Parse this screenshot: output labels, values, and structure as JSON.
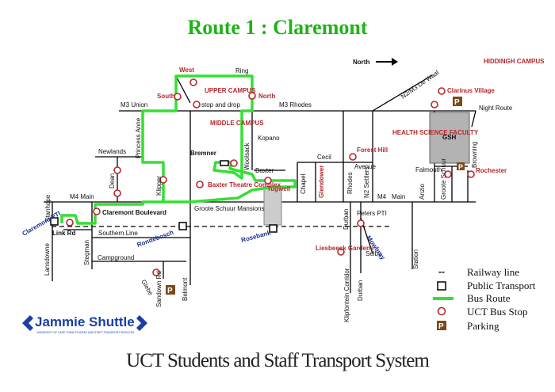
{
  "title": "Route 1 : Claremont",
  "title_color": "#1fb316",
  "footer": "UCT Students and Staff Transport System",
  "north_label": "North",
  "logo": {
    "text": "Jammie Shuttle",
    "subtitle": "UNIVERSITY OF CAPE TOWN STUDENT AND STAFF TRANSPORT SERVICES"
  },
  "colors": {
    "route": "#33e033",
    "stop": "#b5272d",
    "road": "#000000",
    "red_text": "#b5272d",
    "blue_text": "#1b2f8f",
    "parking": "#7a4a1c"
  },
  "legend": [
    {
      "symbol": "--",
      "label": "Railway line"
    },
    {
      "symbol": "square",
      "label": "Public Transport"
    },
    {
      "symbol": "green-line",
      "label": "Bus Route"
    },
    {
      "symbol": "circle",
      "label": "UCT Bus Stop"
    },
    {
      "symbol": "P",
      "label": "Parking"
    }
  ],
  "roads": {
    "m3_union": "M3 Union",
    "m3_rhodes": "M3 Rhodes",
    "ring": "Ring",
    "kopano": "Kopano",
    "princess_anne": "Princess Anne",
    "newlands": "Newlands",
    "dean": "Dean",
    "klipper": "Klipper",
    "m4_main_left": "M4 Main",
    "m4": "M4",
    "main": "Main",
    "stanhope": "Stanhope",
    "claremont_boulevard": "Claremont Boulevard",
    "groote_schuur_mansions": "Groote Schuur Mansions",
    "southern_line": "Southern Line",
    "campground": "Campground",
    "stegman": "Stegman",
    "lansdowne": "Lansdowne",
    "link_rd": "Link Rd",
    "belmont": "Belmont",
    "sandown_rd": "Sandown Rd",
    "woolsack": "Woolsack",
    "bremner": "Bremner",
    "baxter": "Baxter",
    "chapel": "Chapel",
    "cecil": "Cecil",
    "rhodes": "Rhodes",
    "avenue": "Avenue",
    "n2_settlers": "N2 Settlers",
    "durban1": "Durban",
    "durban2": "Durban",
    "klipfontein_corridor": "Klipfontein Corridor",
    "selby": "Selby",
    "anzio": "Anzio",
    "groote_schuur": "Groote Schuur",
    "browning": "Browning",
    "station": "Station",
    "falmouth": "Falmouth",
    "night_route": "Night Route",
    "n2_m3_de_waal": "N2/M3  De Waal",
    "gsh": "GSH"
  },
  "places": {
    "west": "West",
    "south": "South",
    "north": "North",
    "upper_campus": "UPPER CAMPUS",
    "drop": "stop and drop",
    "middle_campus": "MIDDLE CAMPUS",
    "baxter_theatre": "Baxter Theatre Complex",
    "tugwell": "Tugwell",
    "glendower": "Glendower",
    "forest_hill": "Forest Hill",
    "health_science": "HEALTH SCIENCE FACULTY",
    "clarinus": "Clarinus Village",
    "hiddingh": "HIDDINGH CAMPUS",
    "rochester": "Rochester",
    "liesbeeck": "Liesbeeck Gardens",
    "groote_schuur_mansions_red": ""
  },
  "stations": {
    "claremont_pti": "Claremont PTI",
    "rondebosch": "Rondebosch",
    "rosebank": "Rosebank",
    "mowbray": "Mowbray",
    "peters_pti": "Peters PTI",
    "glebe": "Glebe"
  }
}
